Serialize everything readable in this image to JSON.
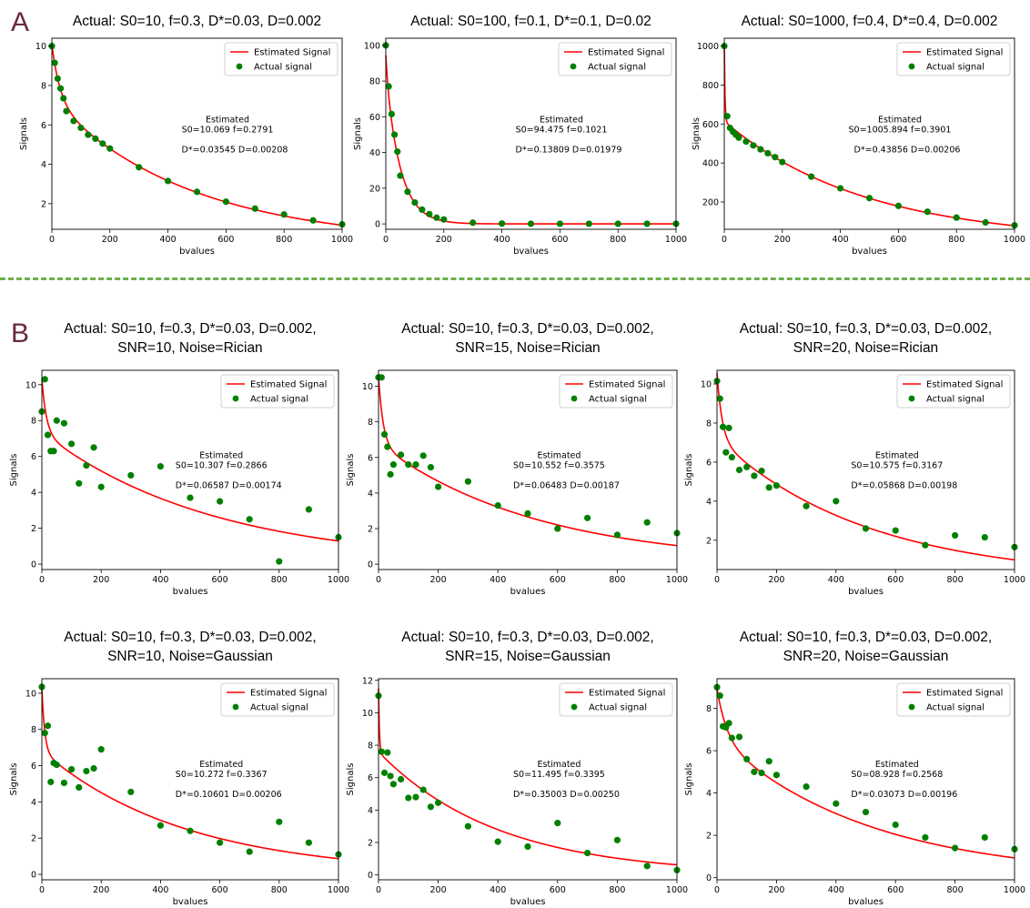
{
  "panel_labels": [
    "A",
    "B"
  ],
  "colors": {
    "fit": "#ff0000",
    "points": "#008000",
    "divider": "#6ab04c",
    "label": "#6a2a3a"
  },
  "chart_data": [
    {
      "type": "scatter",
      "title_lines": [
        "Actual: S0=10, f=0.3, D*=0.03, D=0.002"
      ],
      "xlabel": "bvalues",
      "ylabel": "Signals",
      "xlim": [
        0,
        1000
      ],
      "ylim": [
        0.7,
        10.4
      ],
      "xticks": [
        0,
        200,
        400,
        600,
        800,
        1000
      ],
      "yticks": [
        2,
        4,
        6,
        8,
        10
      ],
      "legend": [
        "Estimated Signal",
        "Actual signal"
      ],
      "legend_position": "top-right",
      "annotation": [
        "Estimated",
        "S0=10.069 f=0.2791",
        "D*=0.03545 D=0.00208"
      ],
      "fit": {
        "S0": 10.069,
        "f": 0.2791,
        "Dstar": 0.03545,
        "D": 0.00208
      },
      "x": [
        0,
        10,
        20,
        30,
        40,
        50,
        75,
        100,
        125,
        150,
        175,
        200,
        300,
        400,
        500,
        600,
        700,
        800,
        900,
        1000
      ],
      "y": [
        10,
        9.15,
        8.35,
        7.85,
        7.35,
        6.7,
        6.2,
        5.85,
        5.5,
        5.3,
        5.05,
        4.8,
        3.85,
        3.15,
        2.6,
        2.1,
        1.75,
        1.45,
        1.15,
        0.95
      ]
    },
    {
      "type": "scatter",
      "title_lines": [
        "Actual: S0=100, f=0.1, D*=0.1, D=0.02"
      ],
      "xlabel": "bvalues",
      "ylabel": "Signals",
      "xlim": [
        0,
        1000
      ],
      "ylim": [
        -3,
        104
      ],
      "xticks": [
        0,
        200,
        400,
        600,
        800,
        1000
      ],
      "yticks": [
        0,
        20,
        40,
        60,
        80,
        100
      ],
      "legend": [
        "Estimated Signal",
        "Actual signal"
      ],
      "legend_position": "top-right",
      "annotation": [
        "Estimated",
        "S0=94.475 f=0.1021",
        "D*=0.13809 D=0.01979"
      ],
      "fit": {
        "S0": 94.475,
        "f": 0.1021,
        "Dstar": 0.13809,
        "D": 0.01979
      },
      "x": [
        0,
        10,
        20,
        30,
        40,
        50,
        75,
        100,
        125,
        150,
        175,
        200,
        300,
        400,
        500,
        600,
        700,
        800,
        900,
        1000
      ],
      "y": [
        100,
        77,
        61.5,
        50,
        40.5,
        27,
        18,
        12,
        8,
        5.5,
        3.5,
        2.5,
        0.7,
        0.2,
        0.1,
        0.1,
        0.1,
        0.1,
        0.1,
        0.1
      ]
    },
    {
      "type": "scatter",
      "title_lines": [
        "Actual: S0=1000, f=0.4, D*=0.4, D=0.002"
      ],
      "xlabel": "bvalues",
      "ylabel": "Signals",
      "xlim": [
        0,
        1000
      ],
      "ylim": [
        60,
        1040
      ],
      "xticks": [
        0,
        200,
        400,
        600,
        800,
        1000
      ],
      "yticks": [
        200,
        400,
        600,
        800,
        1000
      ],
      "legend": [
        "Estimated Signal",
        "Actual signal"
      ],
      "legend_position": "top-right",
      "annotation": [
        "Estimated",
        "S0=1005.894 f=0.3901",
        "D*=0.43856 D=0.00206"
      ],
      "fit": {
        "S0": 1005.894,
        "f": 0.3901,
        "Dstar": 0.43856,
        "D": 0.00206
      },
      "x": [
        0,
        10,
        20,
        30,
        40,
        50,
        75,
        100,
        125,
        150,
        175,
        200,
        300,
        400,
        500,
        600,
        700,
        800,
        900,
        1000
      ],
      "y": [
        1000,
        640,
        580,
        560,
        545,
        530,
        510,
        490,
        470,
        450,
        430,
        405,
        330,
        270,
        220,
        180,
        150,
        120,
        95,
        80
      ]
    },
    {
      "type": "scatter",
      "title_lines": [
        "Actual: S0=10, f=0.3, D*=0.03, D=0.002,",
        "SNR=10, Noise=Rician"
      ],
      "xlabel": "bvalues",
      "ylabel": "Signals",
      "xlim": [
        0,
        1000
      ],
      "ylim": [
        -0.3,
        10.8
      ],
      "xticks": [
        0,
        200,
        400,
        600,
        800,
        1000
      ],
      "yticks": [
        0,
        2,
        4,
        6,
        8,
        10
      ],
      "legend": [
        "Estimated Signal",
        "Actual signal"
      ],
      "legend_position": "top-right",
      "annotation": [
        "Estimated",
        "S0=10.307 f=0.2866",
        "D*=0.06587 D=0.00174"
      ],
      "fit": {
        "S0": 10.307,
        "f": 0.2866,
        "Dstar": 0.06587,
        "D": 0.00174
      },
      "x": [
        0,
        10,
        20,
        30,
        40,
        50,
        75,
        100,
        125,
        150,
        175,
        200,
        300,
        400,
        500,
        600,
        700,
        800,
        900,
        1000
      ],
      "y": [
        8.5,
        10.3,
        7.2,
        6.3,
        6.3,
        8.0,
        7.85,
        6.7,
        4.5,
        5.5,
        6.5,
        4.3,
        4.95,
        5.45,
        3.7,
        3.5,
        2.5,
        0.15,
        3.05,
        1.5
      ]
    },
    {
      "type": "scatter",
      "title_lines": [
        "Actual: S0=10, f=0.3, D*=0.03, D=0.002,",
        "SNR=15, Noise=Rician"
      ],
      "xlabel": "bvalues",
      "ylabel": "Signals",
      "xlim": [
        0,
        1000
      ],
      "ylim": [
        -0.3,
        10.9
      ],
      "xticks": [
        0,
        200,
        400,
        600,
        800,
        1000
      ],
      "yticks": [
        0,
        2,
        4,
        6,
        8,
        10
      ],
      "legend": [
        "Estimated Signal",
        "Actual signal"
      ],
      "legend_position": "top-right",
      "annotation": [
        "Estimated",
        "S0=10.552 f=0.3575",
        "D*=0.06483 D=0.00187"
      ],
      "fit": {
        "S0": 10.552,
        "f": 0.3575,
        "Dstar": 0.06483,
        "D": 0.00187
      },
      "x": [
        0,
        10,
        20,
        30,
        40,
        50,
        75,
        100,
        125,
        150,
        175,
        200,
        300,
        400,
        500,
        600,
        700,
        800,
        900,
        1000
      ],
      "y": [
        10.5,
        10.5,
        7.3,
        6.6,
        5.05,
        5.6,
        6.15,
        5.6,
        5.6,
        6.1,
        5.45,
        4.35,
        4.65,
        3.3,
        2.85,
        2.0,
        2.6,
        1.65,
        2.35,
        1.75
      ]
    },
    {
      "type": "scatter",
      "title_lines": [
        "Actual: S0=10, f=0.3, D*=0.03, D=0.002,",
        "SNR=20, Noise=Rician"
      ],
      "xlabel": "bvalues",
      "ylabel": "Signals",
      "xlim": [
        0,
        1000
      ],
      "ylim": [
        0.5,
        10.7
      ],
      "xticks": [
        0,
        200,
        400,
        600,
        800,
        1000
      ],
      "yticks": [
        2,
        4,
        6,
        8,
        10
      ],
      "legend": [
        "Estimated Signal",
        "Actual signal"
      ],
      "legend_position": "top-right",
      "annotation": [
        "Estimated",
        "S0=10.575 f=0.3167",
        "D*=0.05868 D=0.00198"
      ],
      "fit": {
        "S0": 10.575,
        "f": 0.3167,
        "Dstar": 0.05868,
        "D": 0.00198
      },
      "x": [
        0,
        10,
        20,
        30,
        40,
        50,
        75,
        100,
        125,
        150,
        175,
        200,
        300,
        400,
        500,
        600,
        700,
        800,
        900,
        1000
      ],
      "y": [
        10.15,
        9.25,
        7.8,
        6.5,
        7.75,
        6.25,
        5.6,
        5.75,
        5.3,
        5.55,
        4.7,
        4.8,
        3.75,
        4.0,
        2.6,
        2.5,
        1.75,
        2.25,
        2.15,
        1.65
      ]
    },
    {
      "type": "scatter",
      "title_lines": [
        "Actual: S0=10, f=0.3, D*=0.03, D=0.002,",
        "SNR=10, Noise=Gaussian"
      ],
      "xlabel": "bvalues",
      "ylabel": "Signals",
      "xlim": [
        0,
        1000
      ],
      "ylim": [
        -0.3,
        10.8
      ],
      "xticks": [
        0,
        200,
        400,
        600,
        800,
        1000
      ],
      "yticks": [
        0,
        2,
        4,
        6,
        8,
        10
      ],
      "legend": [
        "Estimated Signal",
        "Actual signal"
      ],
      "legend_position": "top-right",
      "annotation": [
        "Estimated",
        "S0=10.272 f=0.3367",
        "D*=0.10601 D=0.00206"
      ],
      "fit": {
        "S0": 10.272,
        "f": 0.3367,
        "Dstar": 0.10601,
        "D": 0.00206
      },
      "x": [
        0,
        10,
        20,
        30,
        40,
        50,
        75,
        100,
        125,
        150,
        175,
        200,
        300,
        400,
        500,
        600,
        700,
        800,
        900,
        1000
      ],
      "y": [
        10.35,
        7.8,
        8.2,
        5.1,
        6.15,
        6.05,
        5.05,
        5.8,
        4.8,
        5.7,
        5.85,
        6.9,
        4.55,
        2.7,
        2.4,
        1.75,
        1.25,
        2.9,
        1.75,
        1.1
      ]
    },
    {
      "type": "scatter",
      "title_lines": [
        "Actual: S0=10, f=0.3, D*=0.03, D=0.002,",
        "SNR=15, Noise=Gaussian"
      ],
      "xlabel": "bvalues",
      "ylabel": "Signals",
      "xlim": [
        0,
        1000
      ],
      "ylim": [
        -0.3,
        12.1
      ],
      "xticks": [
        0,
        200,
        400,
        600,
        800,
        1000
      ],
      "yticks": [
        0,
        2,
        4,
        6,
        8,
        10,
        12
      ],
      "legend": [
        "Estimated Signal",
        "Actual signal"
      ],
      "legend_position": "top-right",
      "annotation": [
        "Estimated",
        "S0=11.495 f=0.3395",
        "D*=0.35003 D=0.00250"
      ],
      "fit": {
        "S0": 11.495,
        "f": 0.3395,
        "Dstar": 0.35003,
        "D": 0.0025
      },
      "x": [
        0,
        10,
        20,
        30,
        40,
        50,
        75,
        100,
        125,
        150,
        175,
        200,
        300,
        400,
        500,
        600,
        700,
        800,
        900,
        1000
      ],
      "y": [
        11.05,
        7.6,
        6.3,
        7.55,
        6.1,
        5.6,
        5.9,
        4.75,
        4.8,
        5.25,
        4.2,
        4.45,
        3.0,
        2.05,
        1.75,
        3.2,
        1.35,
        2.15,
        0.55,
        0.3
      ]
    },
    {
      "type": "scatter",
      "title_lines": [
        "Actual: S0=10, f=0.3, D*=0.03, D=0.002,",
        "SNR=20, Noise=Gaussian"
      ],
      "xlabel": "bvalues",
      "ylabel": "Signals",
      "xlim": [
        0,
        1000
      ],
      "ylim": [
        -0.1,
        9.4
      ],
      "xticks": [
        0,
        200,
        400,
        600,
        800,
        1000
      ],
      "yticks": [
        0,
        2,
        4,
        6,
        8
      ],
      "legend": [
        "Estimated Signal",
        "Actual signal"
      ],
      "legend_position": "top-right",
      "annotation": [
        "Estimated",
        "S0=08.928 f=0.2568",
        "D*=0.03073 D=0.00196"
      ],
      "fit": {
        "S0": 8.928,
        "f": 0.2568,
        "Dstar": 0.03073,
        "D": 0.00196
      },
      "x": [
        0,
        10,
        20,
        30,
        40,
        50,
        75,
        100,
        125,
        150,
        175,
        200,
        300,
        400,
        500,
        600,
        700,
        800,
        900,
        1000
      ],
      "y": [
        9.0,
        8.6,
        7.15,
        7.1,
        7.3,
        6.6,
        6.65,
        5.6,
        5.0,
        4.95,
        5.5,
        4.85,
        4.3,
        3.5,
        3.1,
        2.5,
        1.9,
        1.4,
        1.9,
        1.35
      ]
    }
  ]
}
